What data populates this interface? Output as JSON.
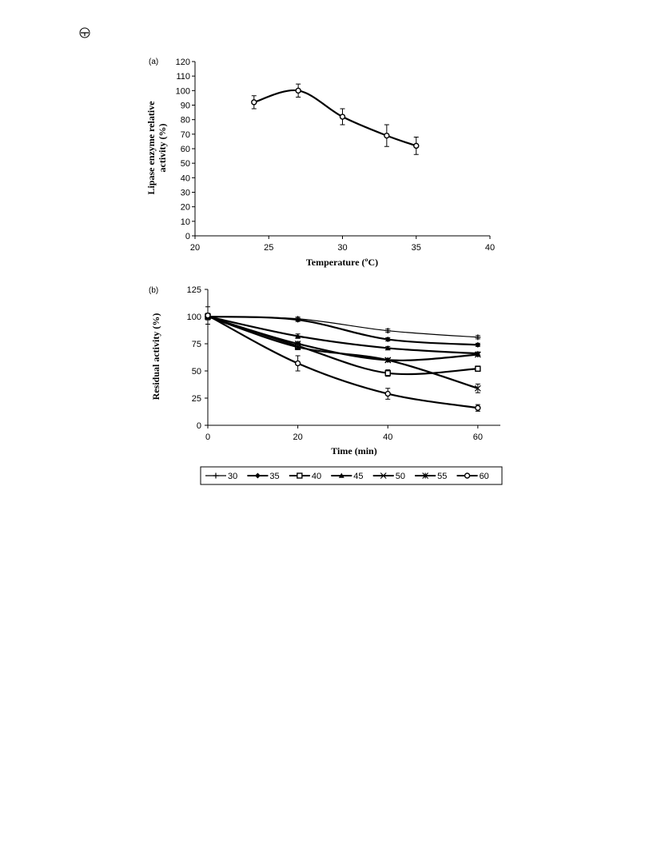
{
  "chart_data": [
    {
      "panel_label": "(a)",
      "type": "line",
      "xlabel": "Temperature  (ºC)",
      "ylabel_line1": "Lipase enzyme relative",
      "ylabel_line2": "activity  (%)",
      "xlim": [
        20,
        40
      ],
      "ylim": [
        0,
        120
      ],
      "xticks": [
        20,
        25,
        30,
        35,
        40
      ],
      "yticks": [
        0,
        10,
        20,
        30,
        40,
        50,
        60,
        70,
        80,
        90,
        100,
        110,
        120
      ],
      "grid": false,
      "series": [
        {
          "x": [
            24,
            27,
            30,
            33,
            35
          ],
          "y": [
            92,
            100,
            82,
            69,
            62
          ],
          "error": [
            4.5,
            4.5,
            5.5,
            7.5,
            6
          ]
        }
      ]
    },
    {
      "panel_label": "(b)",
      "type": "line",
      "xlabel": "Time (min)",
      "ylabel": "Residual activity  (%)",
      "xlim": [
        0,
        65
      ],
      "ylim": [
        0,
        125
      ],
      "xticks": [
        0,
        20,
        40,
        60
      ],
      "yticks": [
        0,
        25,
        50,
        75,
        100,
        125
      ],
      "grid": false,
      "legend_position": "bottom",
      "x": [
        0,
        20,
        40,
        60
      ],
      "series": [
        {
          "name": "30",
          "marker": "plus",
          "values": [
            100,
            98,
            87,
            81
          ],
          "error": [
            2,
            1.5,
            1.5,
            1.5
          ]
        },
        {
          "name": "35",
          "marker": "diamond",
          "values": [
            100,
            97,
            79,
            74
          ],
          "error": [
            2,
            1.5,
            1.5,
            1.5
          ]
        },
        {
          "name": "40",
          "marker": "square",
          "values": [
            100,
            73,
            48,
            52
          ],
          "error": [
            3,
            3,
            3,
            2.5
          ]
        },
        {
          "name": "45",
          "marker": "triangle",
          "values": [
            100,
            82,
            71,
            66
          ],
          "error": [
            2,
            2,
            1.5,
            1.5
          ]
        },
        {
          "name": "50",
          "marker": "x",
          "values": [
            100,
            72,
            60,
            34
          ],
          "error": [
            2,
            2.5,
            1.5,
            4
          ]
        },
        {
          "name": "55",
          "marker": "asterisk",
          "values": [
            100,
            75,
            60,
            65
          ],
          "error": [
            2,
            2,
            1.5,
            1.5
          ]
        },
        {
          "name": "60",
          "marker": "circle",
          "values": [
            101,
            57,
            29,
            16
          ],
          "error": [
            8,
            7,
            5,
            3
          ]
        }
      ]
    }
  ]
}
